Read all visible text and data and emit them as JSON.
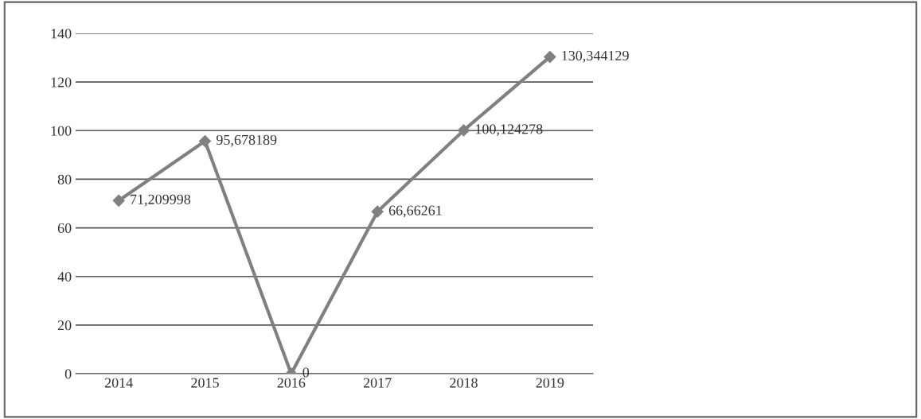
{
  "chart_data": {
    "type": "line",
    "categories": [
      "2014",
      "2015",
      "2016",
      "2017",
      "2018",
      "2019"
    ],
    "series": [
      {
        "color": "#808080",
        "values": [
          71.209998,
          95.678189,
          0,
          66.66261,
          100.124278,
          130.344129
        ]
      }
    ],
    "value_labels": [
      "71,209998",
      "95,678189",
      "0",
      "66,66261",
      "100,124278",
      "130,344129"
    ],
    "ylim": [
      0,
      140
    ],
    "yticks": [
      0,
      20,
      40,
      60,
      80,
      100,
      120,
      140
    ],
    "grid": "y",
    "marker": "diamond",
    "line_style": "solid"
  }
}
